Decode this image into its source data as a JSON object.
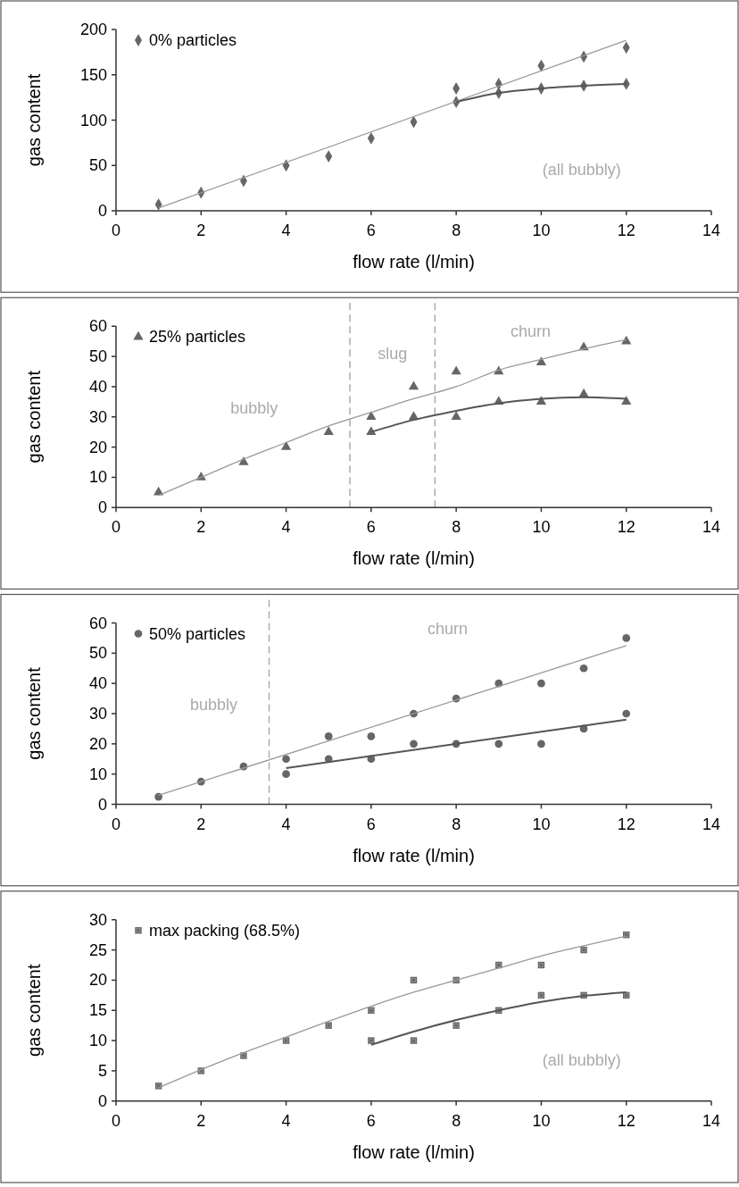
{
  "chart_data": [
    {
      "type": "scatter",
      "xlabel": "flow rate (l/min)",
      "ylabel": "gas content",
      "xlim": [
        0,
        14
      ],
      "xticks": [
        0,
        2,
        4,
        6,
        8,
        10,
        12,
        14
      ],
      "ylim": [
        0,
        200
      ],
      "yticks": [
        0,
        50,
        100,
        150,
        200
      ],
      "legend": "top left",
      "series": [
        {
          "name": "0% particles",
          "marker": "diamond",
          "color": "#666666",
          "x": [
            1,
            2,
            3,
            4,
            5,
            6,
            7,
            8,
            8,
            9,
            9,
            10,
            10,
            11,
            11,
            12,
            12
          ],
          "values": [
            7,
            20,
            33,
            50,
            60,
            80,
            98,
            120,
            135,
            130,
            140,
            135,
            160,
            138,
            170,
            140,
            180
          ]
        },
        {
          "type": "line",
          "color": "#999999",
          "x": [
            1,
            12
          ],
          "values": [
            3,
            188
          ]
        },
        {
          "type": "line",
          "color": "#555555",
          "x": [
            8,
            9,
            10,
            11,
            12
          ],
          "values": [
            120,
            130,
            135,
            138,
            140
          ]
        }
      ],
      "annotations": [
        "(all bubbly)"
      ]
    },
    {
      "type": "scatter",
      "xlabel": "flow rate (l/min)",
      "ylabel": "gas content",
      "xlim": [
        0,
        14
      ],
      "xticks": [
        0,
        2,
        4,
        6,
        8,
        10,
        12,
        14
      ],
      "ylim": [
        0,
        60
      ],
      "yticks": [
        0,
        10,
        20,
        30,
        40,
        50,
        60
      ],
      "legend": "top left",
      "series": [
        {
          "name": "25% particles",
          "marker": "triangle",
          "color": "#666666",
          "x": [
            1,
            2,
            3,
            4,
            5,
            6,
            6,
            7,
            7,
            8,
            8,
            9,
            9,
            10,
            10,
            11,
            11,
            12,
            12
          ],
          "values": [
            5,
            10,
            15,
            20,
            25,
            30,
            25,
            40,
            30,
            45,
            30,
            45,
            35,
            48,
            35,
            53,
            37.5,
            55,
            35
          ]
        },
        {
          "type": "line",
          "color": "#999999",
          "x": [
            1,
            2,
            3,
            4,
            5,
            6,
            7,
            8,
            9,
            10,
            11,
            12
          ],
          "values": [
            4,
            10,
            16,
            21.5,
            27,
            31.5,
            36,
            40,
            45.5,
            49,
            52.5,
            55.5
          ]
        },
        {
          "type": "line",
          "color": "#555555",
          "x": [
            6,
            7,
            8,
            9,
            10,
            11,
            12
          ],
          "values": [
            25,
            29,
            32,
            34.5,
            36,
            36.5,
            36
          ]
        }
      ],
      "ref_lines": [
        {
          "axis": "x",
          "value": 5.5,
          "color": "#aaaaaa",
          "line_style": "dashed"
        },
        {
          "axis": "x",
          "value": 7.5,
          "color": "#aaaaaa",
          "line_style": "dashed"
        }
      ],
      "annotations": [
        "bubbly",
        "slug",
        "churn"
      ]
    },
    {
      "type": "scatter",
      "xlabel": "flow rate (l/min)",
      "ylabel": "gas content",
      "xlim": [
        0,
        14
      ],
      "xticks": [
        0,
        2,
        4,
        6,
        8,
        10,
        12,
        14
      ],
      "ylim": [
        0,
        60
      ],
      "yticks": [
        0,
        10,
        20,
        30,
        40,
        50,
        60
      ],
      "legend": "top left",
      "series": [
        {
          "name": "50% particles",
          "marker": "circle",
          "color": "#666666",
          "x": [
            1,
            2,
            3,
            4,
            4,
            5,
            5,
            6,
            6,
            7,
            7,
            8,
            8,
            9,
            9,
            10,
            10,
            11,
            11,
            12,
            12
          ],
          "values": [
            2.5,
            7.5,
            12.5,
            15,
            10,
            22.5,
            15,
            22.5,
            15,
            30,
            20,
            35,
            20,
            40,
            20,
            40,
            20,
            45,
            25,
            55,
            30
          ]
        },
        {
          "type": "line",
          "color": "#999999",
          "x": [
            1,
            12
          ],
          "values": [
            3,
            52.5
          ]
        },
        {
          "type": "line",
          "color": "#555555",
          "x": [
            4,
            12
          ],
          "values": [
            12,
            28
          ]
        }
      ],
      "ref_lines": [
        {
          "axis": "x",
          "value": 3.6,
          "color": "#aaaaaa",
          "line_style": "dashed"
        }
      ],
      "annotations": [
        "bubbly",
        "churn"
      ]
    },
    {
      "type": "scatter",
      "xlabel": "flow rate (l/min)",
      "ylabel": "gas content",
      "xlim": [
        0,
        14
      ],
      "xticks": [
        0,
        2,
        4,
        6,
        8,
        10,
        12,
        14
      ],
      "ylim": [
        0,
        30
      ],
      "yticks": [
        0,
        5,
        10,
        15,
        20,
        25,
        30
      ],
      "legend": "top left",
      "series": [
        {
          "name": "max packing (68.5%)",
          "marker": "square",
          "color": "#666666",
          "x": [
            1,
            2,
            3,
            4,
            5,
            6,
            6,
            7,
            7,
            8,
            8,
            9,
            9,
            10,
            10,
            11,
            11,
            12,
            12
          ],
          "values": [
            2.5,
            5,
            7.5,
            10,
            12.5,
            15,
            10,
            20,
            10,
            20,
            12.5,
            22.5,
            15,
            22.5,
            17.5,
            25,
            17.5,
            27.5,
            17.5
          ]
        },
        {
          "type": "line",
          "color": "#999999",
          "x": [
            1,
            2,
            3,
            4,
            5,
            6,
            7,
            8,
            9,
            10,
            11,
            12
          ],
          "values": [
            2.2,
            5.2,
            8,
            10.6,
            13.2,
            15.7,
            18,
            20,
            22,
            24,
            25.7,
            27.3
          ]
        },
        {
          "type": "line",
          "color": "#555555",
          "x": [
            6,
            7,
            8,
            9,
            10,
            11,
            12
          ],
          "values": [
            9.3,
            11.5,
            13.4,
            15,
            16.4,
            17.4,
            18
          ]
        }
      ],
      "annotations": [
        "(all bubbly)"
      ]
    }
  ]
}
